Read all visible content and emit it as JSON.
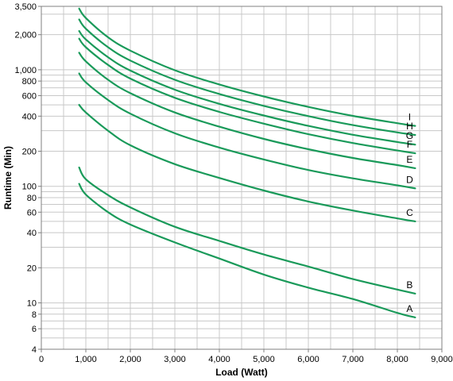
{
  "chart_data": {
    "type": "line",
    "title": "",
    "xlabel": "Load (Watt)",
    "ylabel": "Runtime (Min)",
    "xlim": [
      0,
      9000
    ],
    "ylim": [
      4,
      3500
    ],
    "y_scale": "log",
    "grid": true,
    "line_color": "#1a9a5a",
    "x_ticks": [
      0,
      1000,
      2000,
      3000,
      4000,
      5000,
      6000,
      7000,
      8000,
      9000
    ],
    "x_tick_labels": [
      "0",
      "1,000",
      "2,000",
      "3,000",
      "4,000",
      "5,000",
      "6,000",
      "7,000",
      "8,000",
      "9,000"
    ],
    "y_ticks": [
      4,
      6,
      8,
      10,
      20,
      40,
      60,
      80,
      100,
      200,
      400,
      600,
      800,
      1000,
      2000,
      3500
    ],
    "y_tick_labels": [
      "4",
      "6",
      "8",
      "10",
      "20",
      "40",
      "60",
      "80",
      "100",
      "200",
      "400",
      "600",
      "800",
      "1,000",
      "2,000",
      "3,500"
    ],
    "series": [
      {
        "name": "A",
        "x": [
          850,
          1000,
          1500,
          2000,
          3000,
          4000,
          5000,
          6000,
          7000,
          8000,
          8400
        ],
        "values": [
          105,
          85,
          60,
          47,
          33,
          24,
          17.5,
          13.5,
          10.8,
          8.2,
          7.5
        ]
      },
      {
        "name": "B",
        "x": [
          850,
          1000,
          1500,
          2000,
          3000,
          4000,
          5000,
          6000,
          7000,
          8000,
          8400
        ],
        "values": [
          145,
          115,
          84,
          66,
          45,
          34,
          26,
          20.5,
          16,
          13,
          12
        ]
      },
      {
        "name": "C",
        "x": [
          850,
          1000,
          1500,
          2000,
          3000,
          4000,
          5000,
          6000,
          7000,
          8000,
          8400
        ],
        "values": [
          500,
          430,
          300,
          225,
          155,
          118,
          92,
          74,
          62,
          53,
          50
        ]
      },
      {
        "name": "D",
        "x": [
          850,
          1000,
          1500,
          2000,
          3000,
          4000,
          5000,
          6000,
          7000,
          8000,
          8400
        ],
        "values": [
          930,
          780,
          550,
          420,
          285,
          215,
          170,
          138,
          117,
          102,
          96
        ]
      },
      {
        "name": "E",
        "x": [
          850,
          1000,
          1500,
          2000,
          3000,
          4000,
          5000,
          6000,
          7000,
          8000,
          8400
        ],
        "values": [
          1400,
          1180,
          820,
          630,
          430,
          325,
          255,
          208,
          175,
          152,
          143
        ]
      },
      {
        "name": "F",
        "x": [
          850,
          1000,
          1500,
          2000,
          3000,
          4000,
          5000,
          6000,
          7000,
          8000,
          8400
        ],
        "values": [
          1850,
          1560,
          1100,
          840,
          575,
          435,
          345,
          280,
          235,
          203,
          192
        ]
      },
      {
        "name": "G",
        "x": [
          850,
          1000,
          1500,
          2000,
          3000,
          4000,
          5000,
          6000,
          7000,
          8000,
          8400
        ],
        "values": [
          2150,
          1820,
          1280,
          985,
          675,
          510,
          405,
          330,
          277,
          240,
          228
        ]
      },
      {
        "name": "H",
        "x": [
          850,
          1000,
          1500,
          2000,
          3000,
          4000,
          5000,
          6000,
          7000,
          8000,
          8400
        ],
        "values": [
          2700,
          2250,
          1560,
          1200,
          820,
          620,
          490,
          400,
          335,
          290,
          276
        ]
      },
      {
        "name": "I",
        "x": [
          850,
          1000,
          1500,
          2000,
          3000,
          4000,
          5000,
          6000,
          7000,
          8000,
          8400
        ],
        "values": [
          3350,
          2780,
          1900,
          1460,
          990,
          748,
          590,
          480,
          402,
          348,
          330
        ]
      }
    ]
  }
}
